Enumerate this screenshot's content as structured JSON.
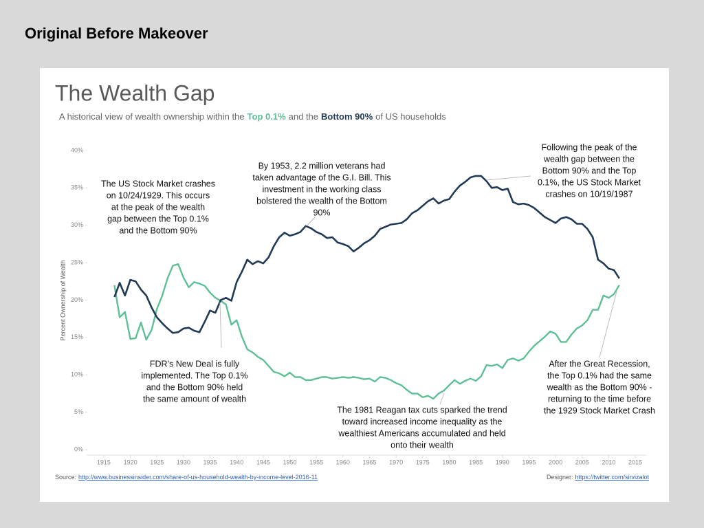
{
  "page_title": "Original Before Makeover",
  "chart_data": {
    "type": "line",
    "title": "The Wealth Gap",
    "subtitle_parts": [
      "A historical view of wealth ownership within the",
      "and the",
      "of US households"
    ],
    "ylabel": "Percent Ownership of Wealth",
    "x": [
      1917,
      1918,
      1919,
      1920,
      1921,
      1922,
      1923,
      1924,
      1925,
      1926,
      1927,
      1928,
      1929,
      1930,
      1931,
      1932,
      1933,
      1934,
      1935,
      1936,
      1937,
      1938,
      1939,
      1940,
      1941,
      1942,
      1943,
      1944,
      1945,
      1946,
      1947,
      1948,
      1949,
      1950,
      1951,
      1952,
      1953,
      1954,
      1955,
      1956,
      1957,
      1958,
      1959,
      1960,
      1961,
      1962,
      1963,
      1964,
      1965,
      1966,
      1967,
      1968,
      1969,
      1970,
      1971,
      1972,
      1973,
      1974,
      1975,
      1976,
      1977,
      1978,
      1979,
      1980,
      1981,
      1982,
      1983,
      1984,
      1985,
      1986,
      1987,
      1988,
      1989,
      1990,
      1991,
      1992,
      1993,
      1994,
      1995,
      1996,
      1997,
      1998,
      1999,
      2000,
      2001,
      2002,
      2003,
      2004,
      2005,
      2006,
      2007,
      2008,
      2009,
      2010,
      2011,
      2012
    ],
    "series": [
      {
        "name": "Top 0.1%",
        "color": "#5ebf95",
        "values": [
          22.0,
          17.7,
          18.4,
          14.8,
          14.9,
          17.0,
          14.7,
          16.0,
          18.8,
          20.6,
          22.9,
          24.6,
          24.8,
          23.0,
          21.7,
          22.4,
          22.2,
          21.9,
          21.0,
          20.3,
          19.9,
          19.4,
          16.7,
          17.3,
          15.1,
          13.4,
          13.0,
          12.4,
          12.0,
          11.2,
          10.4,
          10.2,
          9.8,
          10.3,
          9.7,
          9.7,
          9.3,
          9.3,
          9.5,
          9.7,
          9.7,
          9.5,
          9.6,
          9.7,
          9.6,
          9.7,
          9.6,
          9.4,
          9.5,
          9.1,
          9.7,
          9.6,
          9.3,
          8.9,
          8.6,
          8.0,
          7.5,
          7.5,
          7.0,
          7.2,
          6.8,
          7.5,
          7.9,
          8.6,
          9.3,
          8.8,
          9.2,
          9.5,
          9.2,
          9.8,
          11.3,
          11.2,
          11.4,
          10.9,
          12.0,
          12.2,
          11.9,
          12.2,
          13.1,
          13.9,
          14.5,
          15.1,
          15.8,
          15.5,
          14.4,
          14.4,
          15.4,
          16.2,
          16.6,
          17.3,
          18.7,
          18.7,
          20.6,
          20.3,
          20.8,
          22.0
        ]
      },
      {
        "name": "Bottom 90%",
        "color": "#203a55",
        "values": [
          20.4,
          22.3,
          20.6,
          22.7,
          22.5,
          21.4,
          20.6,
          19.0,
          17.7,
          16.9,
          16.2,
          15.6,
          15.7,
          16.2,
          16.3,
          15.9,
          15.7,
          17.1,
          18.6,
          18.3,
          20.0,
          20.3,
          19.9,
          22.4,
          23.8,
          25.4,
          24.8,
          25.2,
          24.9,
          25.7,
          27.2,
          28.4,
          29.0,
          28.6,
          28.8,
          29.1,
          29.9,
          29.6,
          29.1,
          28.8,
          28.3,
          28.4,
          27.7,
          27.5,
          27.2,
          26.5,
          27.0,
          27.6,
          28.0,
          28.6,
          29.5,
          29.8,
          30.1,
          30.2,
          30.3,
          30.8,
          31.6,
          32.0,
          32.6,
          33.2,
          33.6,
          32.9,
          33.3,
          33.5,
          34.5,
          35.3,
          35.8,
          36.4,
          36.6,
          36.6,
          35.9,
          35.0,
          35.1,
          34.7,
          34.9,
          33.1,
          32.8,
          32.9,
          32.7,
          32.3,
          31.7,
          31.1,
          30.7,
          30.3,
          30.9,
          31.1,
          30.8,
          30.2,
          30.2,
          29.5,
          28.4,
          25.4,
          24.9,
          24.2,
          24.0,
          22.9
        ]
      }
    ],
    "xlim": [
      1911,
      2017
    ],
    "xticks": [
      1915,
      1920,
      1925,
      1930,
      1935,
      1940,
      1945,
      1950,
      1955,
      1960,
      1965,
      1970,
      1975,
      1980,
      1985,
      1990,
      1995,
      2000,
      2005,
      2010,
      2015
    ],
    "ylim": [
      0,
      41
    ],
    "yticks": [
      {
        "value": 0,
        "label": "0%"
      },
      {
        "value": 5,
        "label": "5%"
      },
      {
        "value": 10,
        "label": "10%"
      },
      {
        "value": 15,
        "label": "15%"
      },
      {
        "value": 20,
        "label": "20%"
      },
      {
        "value": 25,
        "label": "25%"
      },
      {
        "value": 30,
        "label": "30%"
      },
      {
        "value": 35,
        "label": "35%"
      },
      {
        "value": 40,
        "label": "40%"
      }
    ],
    "grid": false,
    "annotations": [
      {
        "lines": [
          "The US Stock Market crashes",
          "on 10/24/1929.  This occurs",
          "at the peak of the wealth",
          "gap between the Top 0.1%",
          "and the Bottom 90%"
        ]
      },
      {
        "lines": [
          "By 1953, 2.2 million veterans had",
          "taken advantage of the G.I. Bill. This",
          "investment in the working class",
          "bolstered the wealth of the Bottom",
          "90%"
        ]
      },
      {
        "lines": [
          "Following the peak of the",
          "wealth gap between the",
          "Bottom 90% and the Top",
          "0.1%, the US Stock Market",
          "crashes on 10/19/1987"
        ]
      },
      {
        "lines": [
          "FDR’s New Deal is fully",
          "implemented. The Top 0.1%",
          "and the Bottom 90% held",
          "the same amount of wealth"
        ]
      },
      {
        "lines": [
          "The 1981 Reagan tax cuts sparked the trend",
          "toward increased income inequality as the",
          "wealthiest Americans accumulated and held",
          "onto their wealth"
        ]
      },
      {
        "lines": [
          "After the Great Recession,",
          "the Top 0.1% had the same",
          "wealth as the Bottom 90% -",
          "returning to the time before",
          "the 1929 Stock Market Crash"
        ]
      }
    ],
    "source_label": "Source:",
    "source_url": "http://www.businessinsider.com/share-of-us-household-wealth-by-income-level-2016-11",
    "designer_label": "Designer:",
    "designer_url": "https://twitter.com/sirvizalot"
  }
}
